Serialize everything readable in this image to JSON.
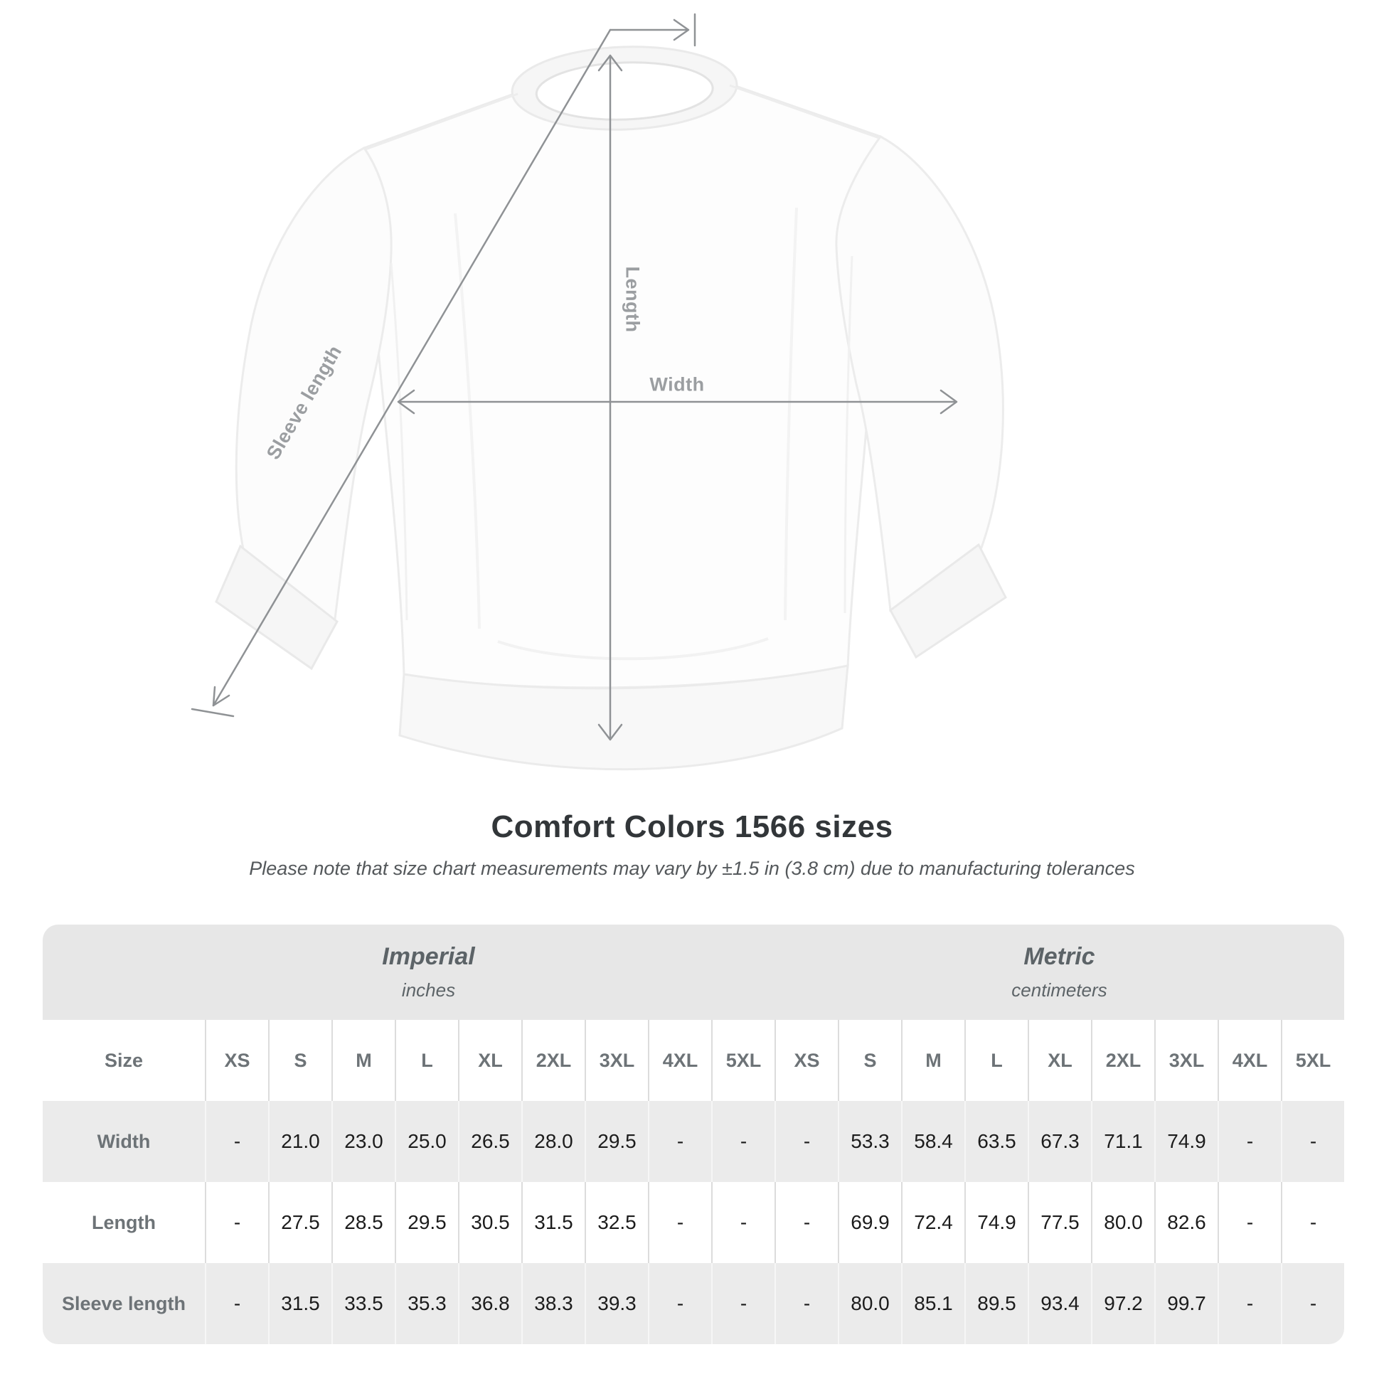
{
  "heading": {
    "title": "Comfort Colors 1566 sizes",
    "subtitle": "Please note that size chart measurements may vary by ±1.5 in (3.8 cm) due to manufacturing tolerances"
  },
  "diagram": {
    "length_label": "Length",
    "width_label": "Width",
    "sleeve_label": "Sleeve length",
    "arrow_color": "#8f9295",
    "label_color": "#9b9ea1"
  },
  "table": {
    "size_label": "Size",
    "unit_groups": [
      {
        "name": "Imperial",
        "unit": "inches"
      },
      {
        "name": "Metric",
        "unit": "centimeters"
      }
    ],
    "sizes": [
      "XS",
      "S",
      "M",
      "L",
      "XL",
      "2XL",
      "3XL",
      "4XL",
      "5XL"
    ],
    "rows": [
      {
        "label": "Width",
        "imperial": [
          "-",
          "21.0",
          "23.0",
          "25.0",
          "26.5",
          "28.0",
          "29.5",
          "-",
          "-"
        ],
        "metric": [
          "-",
          "53.3",
          "58.4",
          "63.5",
          "67.3",
          "71.1",
          "74.9",
          "-",
          "-"
        ]
      },
      {
        "label": "Length",
        "imperial": [
          "-",
          "27.5",
          "28.5",
          "29.5",
          "30.5",
          "31.5",
          "32.5",
          "-",
          "-"
        ],
        "metric": [
          "-",
          "69.9",
          "72.4",
          "74.9",
          "77.5",
          "80.0",
          "82.6",
          "-",
          "-"
        ]
      },
      {
        "label": "Sleeve length",
        "imperial": [
          "-",
          "31.5",
          "33.5",
          "35.3",
          "36.8",
          "38.3",
          "39.3",
          "-",
          "-"
        ],
        "metric": [
          "-",
          "80.0",
          "85.1",
          "89.5",
          "93.4",
          "97.2",
          "99.7",
          "-",
          "-"
        ]
      }
    ],
    "colors": {
      "band_bg": "#e7e7e7",
      "stripe_bg": "#ebebeb",
      "header_text": "#6d7377",
      "value_text": "#1c1c1c"
    }
  },
  "chart_data": {
    "type": "table",
    "title": "Comfort Colors 1566 sizes",
    "note": "Please note that size chart measurements may vary by ±1.5 in (3.8 cm) due to manufacturing tolerances",
    "column_groups": [
      "Imperial (inches)",
      "Metric (centimeters)"
    ],
    "columns": [
      "Size",
      "XS",
      "S",
      "M",
      "L",
      "XL",
      "2XL",
      "3XL",
      "4XL",
      "5XL",
      "XS",
      "S",
      "M",
      "L",
      "XL",
      "2XL",
      "3XL",
      "4XL",
      "5XL"
    ],
    "rows": [
      [
        "Width",
        "-",
        "21.0",
        "23.0",
        "25.0",
        "26.5",
        "28.0",
        "29.5",
        "-",
        "-",
        "-",
        "53.3",
        "58.4",
        "63.5",
        "67.3",
        "71.1",
        "74.9",
        "-",
        "-"
      ],
      [
        "Length",
        "-",
        "27.5",
        "28.5",
        "29.5",
        "30.5",
        "31.5",
        "32.5",
        "-",
        "-",
        "-",
        "69.9",
        "72.4",
        "74.9",
        "77.5",
        "80.0",
        "82.6",
        "-",
        "-"
      ],
      [
        "Sleeve length",
        "-",
        "31.5",
        "33.5",
        "35.3",
        "36.8",
        "38.3",
        "39.3",
        "-",
        "-",
        "-",
        "80.0",
        "85.1",
        "89.5",
        "93.4",
        "97.2",
        "99.7",
        "-",
        "-"
      ]
    ]
  }
}
